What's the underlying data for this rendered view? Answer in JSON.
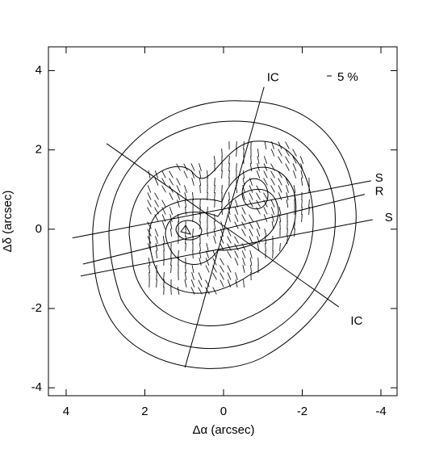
{
  "chart_data": {
    "type": "contour",
    "x_label": "Δα (arcsec)",
    "y_label": "Δδ (arcsec)",
    "xlim": [
      4.45,
      -4.41
    ],
    "ylim": [
      -4.2,
      4.6
    ],
    "xticks": [
      4,
      2,
      0,
      -2,
      -4
    ],
    "yticks": [
      -4,
      -2,
      0,
      2,
      4
    ],
    "scale_label": "5 %",
    "lines": [
      {
        "label": "IC",
        "x": [
          0.98,
          -1.03
        ],
        "y": [
          -3.49,
          3.59
        ]
      },
      {
        "label": "IC",
        "x": [
          2.97,
          -2.93
        ],
        "y": [
          2.16,
          -1.96
        ]
      },
      {
        "label": "S",
        "x": [
          3.84,
          -3.75
        ],
        "y": [
          -0.22,
          1.22
        ]
      },
      {
        "label": "R",
        "x": [
          3.57,
          -3.59
        ],
        "y": [
          -0.88,
          0.88
        ]
      },
      {
        "label": "S",
        "x": [
          3.63,
          -3.79
        ],
        "y": [
          -1.18,
          0.24
        ]
      }
    ]
  }
}
